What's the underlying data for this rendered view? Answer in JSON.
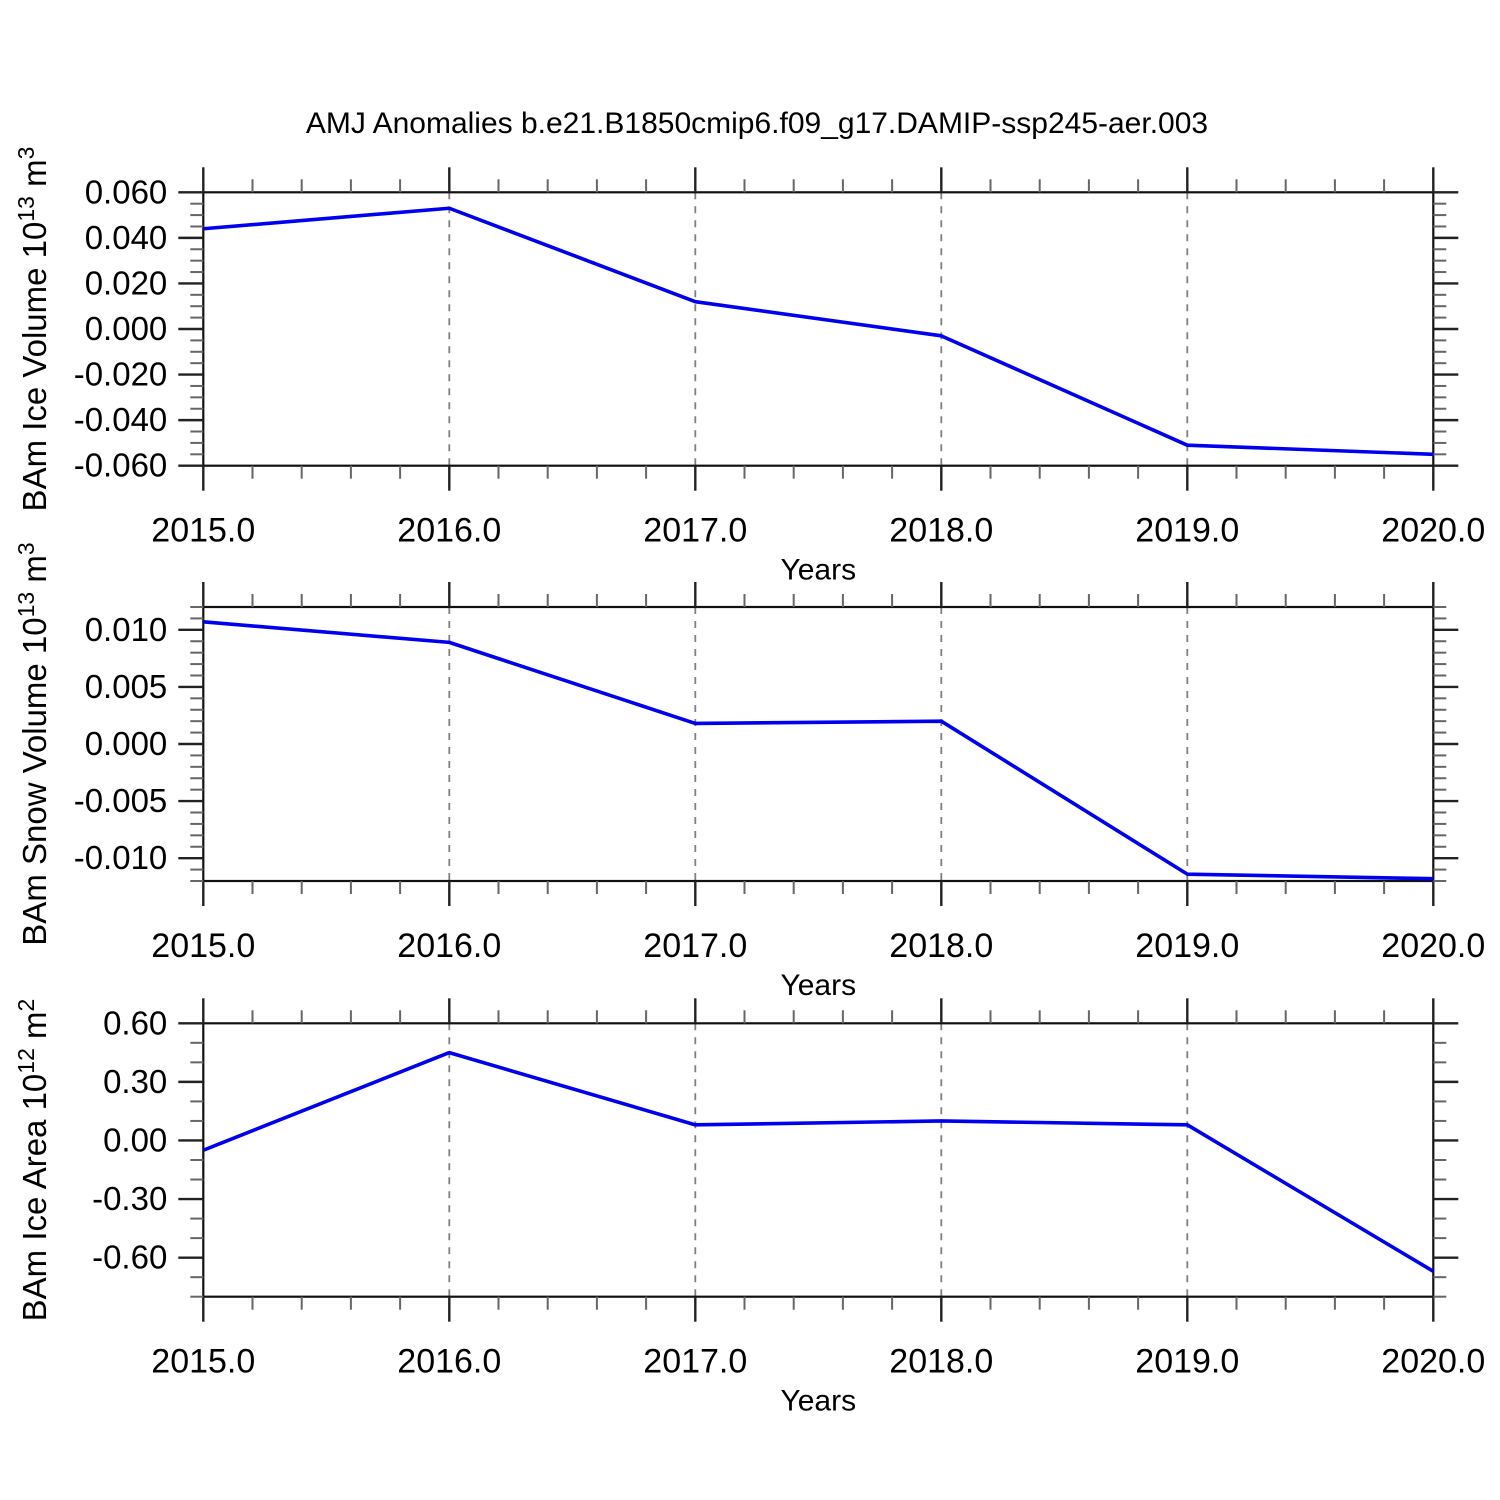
{
  "title": "AMJ Anomalies b.e21.B1850cmip6.f09_g17.DAMIP-ssp245-aer.003",
  "styles": {
    "line_color": "#0000ee",
    "grid_color": "#808080",
    "frame_color": "#111111",
    "major_tick_color": "#222222",
    "minor_tick_color": "#666666",
    "background": "#ffffff",
    "text_color": "#000000"
  },
  "chart_data": [
    {
      "type": "line",
      "panel": "ice-volume",
      "x": [
        2015,
        2016,
        2017,
        2018,
        2019,
        2020
      ],
      "values": [
        0.044,
        0.053,
        0.012,
        -0.003,
        -0.051,
        -0.055
      ],
      "xlabel": "Years",
      "ylabel": "BAm Ice Volume 10^13 m^3",
      "ylabel_parts": [
        {
          "t": "BAm Ice Volume 10"
        },
        {
          "t": "13",
          "sup": true
        },
        {
          "t": " m"
        },
        {
          "t": "3",
          "sup": true
        }
      ],
      "xlim": [
        2015,
        2020
      ],
      "ylim": [
        -0.06,
        0.06
      ],
      "xticks": [
        2015,
        2016,
        2017,
        2018,
        2019,
        2020
      ],
      "xtick_labels": [
        "2015.0",
        "2016.0",
        "2017.0",
        "2018.0",
        "2019.0",
        "2020.0"
      ],
      "xminor_step": 0.2,
      "yticks": [
        0.06,
        0.04,
        0.02,
        0,
        -0.02,
        -0.04,
        -0.06
      ],
      "ytick_labels": [
        "0.060",
        "0.040",
        "0.020",
        "0.000",
        "-0.020",
        "-0.040",
        "-0.060"
      ],
      "yminor_step": 0.005,
      "gridlines_x": [
        2016,
        2017,
        2018,
        2019
      ],
      "grid": "vertical-dashed",
      "legend": "none"
    },
    {
      "type": "line",
      "panel": "snow-volume",
      "x": [
        2015,
        2016,
        2017,
        2018,
        2019,
        2020
      ],
      "values": [
        0.0107,
        0.0089,
        0.0018,
        0.002,
        -0.0114,
        -0.0118
      ],
      "xlabel": "Years",
      "ylabel": "BAm Snow Volume 10^13 m^3",
      "ylabel_parts": [
        {
          "t": "BAm Snow Volume 10"
        },
        {
          "t": "13",
          "sup": true
        },
        {
          "t": " m"
        },
        {
          "t": "3",
          "sup": true
        }
      ],
      "xlim": [
        2015,
        2020
      ],
      "ylim": [
        -0.012,
        0.012
      ],
      "xticks": [
        2015,
        2016,
        2017,
        2018,
        2019,
        2020
      ],
      "xtick_labels": [
        "2015.0",
        "2016.0",
        "2017.0",
        "2018.0",
        "2019.0",
        "2020.0"
      ],
      "xminor_step": 0.2,
      "yticks": [
        0.01,
        0.005,
        0,
        -0.005,
        -0.01
      ],
      "ytick_labels": [
        "0.010",
        "0.005",
        "0.000",
        "-0.005",
        "-0.010"
      ],
      "yminor_step": 0.001,
      "gridlines_x": [
        2016,
        2017,
        2018,
        2019
      ],
      "grid": "vertical-dashed",
      "legend": "none"
    },
    {
      "type": "line",
      "panel": "ice-area",
      "x": [
        2015,
        2016,
        2017,
        2018,
        2019,
        2020
      ],
      "values": [
        -0.05,
        0.45,
        0.08,
        0.1,
        0.08,
        -0.67
      ],
      "xlabel": "Years",
      "ylabel": "BAm Ice Area 10^12 m^2",
      "ylabel_parts": [
        {
          "t": "BAm Ice Area 10"
        },
        {
          "t": "12",
          "sup": true
        },
        {
          "t": " m"
        },
        {
          "t": "2",
          "sup": true
        }
      ],
      "xlim": [
        2015,
        2020
      ],
      "ylim": [
        -0.8,
        0.6
      ],
      "xticks": [
        2015,
        2016,
        2017,
        2018,
        2019,
        2020
      ],
      "xtick_labels": [
        "2015.0",
        "2016.0",
        "2017.0",
        "2018.0",
        "2019.0",
        "2020.0"
      ],
      "xminor_step": 0.2,
      "yticks": [
        0.6,
        0.3,
        0,
        -0.3,
        -0.6
      ],
      "ytick_labels": [
        "0.60",
        "0.30",
        "0.00",
        "-0.30",
        "-0.60"
      ],
      "yminor_step": 0.1,
      "gridlines_x": [
        2016,
        2017,
        2018,
        2019
      ],
      "grid": "vertical-dashed",
      "legend": "none"
    }
  ]
}
